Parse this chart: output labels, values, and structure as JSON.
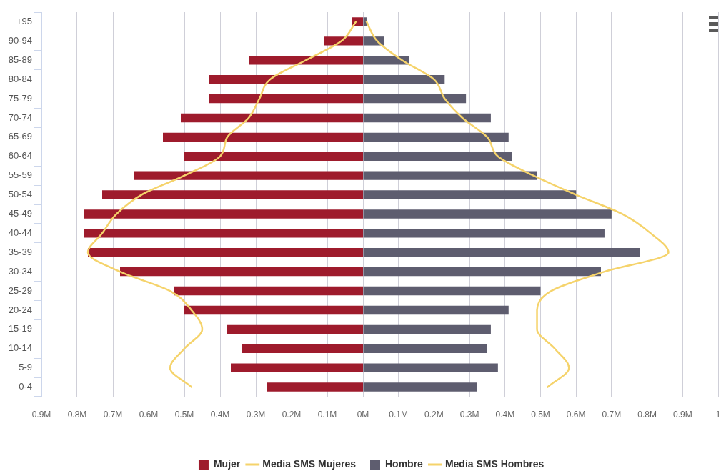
{
  "chart_data": [
    {
      "type": "bar",
      "orientation": "horizontal",
      "categories": [
        "+95",
        "90-94",
        "85-89",
        "80-84",
        "75-79",
        "70-74",
        "65-69",
        "60-64",
        "55-59",
        "50-54",
        "45-49",
        "40-44",
        "35-39",
        "30-34",
        "25-29",
        "20-24",
        "15-19",
        "10-14",
        "5-9",
        "0-4"
      ],
      "series": [
        {
          "name": "Mujer",
          "color": "#9e1b2c",
          "values": [
            0.03,
            0.11,
            0.32,
            0.43,
            0.43,
            0.51,
            0.56,
            0.5,
            0.64,
            0.73,
            0.78,
            0.78,
            0.77,
            0.68,
            0.53,
            0.5,
            0.38,
            0.34,
            0.37,
            0.27
          ]
        },
        {
          "name": "Media SMS Mujeres",
          "type": "line",
          "color": "#f5d36b",
          "values": [
            0.02,
            0.06,
            0.16,
            0.26,
            0.29,
            0.32,
            0.38,
            0.4,
            0.5,
            0.62,
            0.69,
            0.73,
            0.77,
            0.68,
            0.54,
            0.48,
            0.45,
            0.5,
            0.54,
            0.48
          ]
        }
      ],
      "xlim": [
        0.9,
        0
      ],
      "xticks": [
        {
          "value": 0.9,
          "label": "0.9M"
        },
        {
          "value": 0.8,
          "label": "0.8M"
        },
        {
          "value": 0.7,
          "label": "0.7M"
        },
        {
          "value": 0.6,
          "label": "0.6M"
        },
        {
          "value": 0.5,
          "label": "0.5M"
        },
        {
          "value": 0.4,
          "label": "0.4M"
        },
        {
          "value": 0.3,
          "label": "0.3M"
        },
        {
          "value": 0.2,
          "label": "0.2M"
        },
        {
          "value": 0.1,
          "label": "0.1M"
        }
      ],
      "grid": "x",
      "legend": "bottom right",
      "marker": "none",
      "line_style": "solid"
    },
    {
      "type": "bar",
      "orientation": "horizontal",
      "categories": [
        null,
        null,
        null,
        null,
        null,
        null,
        null,
        null,
        null,
        null,
        null,
        null,
        null,
        null,
        null,
        null,
        null,
        null,
        null,
        null
      ],
      "series": [
        {
          "name": "Hombre",
          "color": "#5e5d6f",
          "values": [
            0.01,
            0.06,
            0.13,
            0.23,
            0.29,
            0.36,
            0.41,
            0.42,
            0.49,
            0.6,
            0.7,
            0.68,
            0.78,
            0.67,
            0.5,
            0.41,
            0.36,
            0.35,
            0.38,
            0.32
          ]
        },
        {
          "name": "Media SMS Hombres",
          "type": "line",
          "color": "#f5d36b",
          "values": [
            0.01,
            0.04,
            0.11,
            0.2,
            0.23,
            0.28,
            0.35,
            0.38,
            0.48,
            0.6,
            0.73,
            0.81,
            0.86,
            0.68,
            0.53,
            0.49,
            0.49,
            0.54,
            0.58,
            0.52
          ]
        }
      ],
      "xlim": [
        0,
        1
      ],
      "xticks": [
        {
          "value": 0,
          "label": "0M"
        },
        {
          "value": 0.1,
          "label": "0.1M"
        },
        {
          "value": 0.2,
          "label": "0.2M"
        },
        {
          "value": 0.3,
          "label": "0.3M"
        },
        {
          "value": 0.4,
          "label": "0.4M"
        },
        {
          "value": 0.5,
          "label": "0.5M"
        },
        {
          "value": 0.6,
          "label": "0.6M"
        },
        {
          "value": 0.7,
          "label": "0.7M"
        },
        {
          "value": 0.8,
          "label": "0.8M"
        },
        {
          "value": 0.9,
          "label": "0.9M"
        },
        1
      ],
      "tick_labels": "x",
      "grid": "x",
      "legend": "bottom left",
      "marker": "none",
      "line_style": "solid"
    }
  ]
}
